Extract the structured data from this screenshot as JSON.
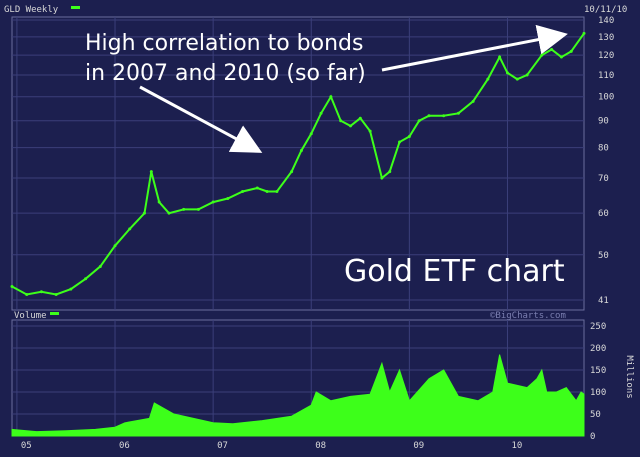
{
  "chart_data": [
    {
      "type": "line",
      "title": "GLD Weekly",
      "date": "10/11/10",
      "legend_color": "#3dff1a",
      "y_scale": "log",
      "y_ticks": [
        41,
        50,
        60,
        70,
        80,
        90,
        100,
        110,
        120,
        130,
        140
      ],
      "ylim": [
        41,
        140
      ],
      "x_ticks": [
        "05",
        "06",
        "07",
        "08",
        "09",
        "10"
      ],
      "grid": true,
      "line_color": "#3dff1a",
      "x_range": [
        2004.95,
        2010.78
      ],
      "series": [
        {
          "x": [
            2004.95,
            2005.1,
            2005.25,
            2005.4,
            2005.55,
            2005.7,
            2005.85,
            2006.0,
            2006.15,
            2006.3,
            2006.37,
            2006.45,
            2006.55,
            2006.7,
            2006.85,
            2007.0,
            2007.15,
            2007.3,
            2007.45,
            2007.55,
            2007.65,
            2007.8,
            2007.9,
            2008.0,
            2008.1,
            2008.2,
            2008.3,
            2008.4,
            2008.5,
            2008.6,
            2008.72,
            2008.8,
            2008.9,
            2009.0,
            2009.1,
            2009.2,
            2009.35,
            2009.5,
            2009.65,
            2009.8,
            2009.92,
            2010.0,
            2010.1,
            2010.2,
            2010.35,
            2010.45,
            2010.55,
            2010.65,
            2010.78
          ],
          "values": [
            43.5,
            42,
            42.5,
            42,
            43,
            45,
            47.5,
            52,
            56,
            60,
            72,
            63,
            60,
            61,
            61,
            63,
            64,
            66,
            67,
            66,
            66,
            72,
            79,
            85,
            93,
            100,
            90,
            88,
            91,
            86,
            70,
            72,
            82,
            84,
            90,
            92,
            92,
            93,
            98,
            108,
            119,
            111,
            108,
            110,
            120,
            123,
            119,
            122,
            132
          ]
        }
      ]
    },
    {
      "type": "area",
      "title": "Volume",
      "legend_color": "#3dff1a",
      "y_ticks": [
        0,
        50,
        100,
        150,
        200,
        250
      ],
      "ylabel": "Millions",
      "ylim": [
        0,
        250
      ],
      "copyright": "©BigCharts.com",
      "series": [
        {
          "x": [
            2004.95,
            2005.2,
            2005.5,
            2005.8,
            2006.0,
            2006.1,
            2006.35,
            2006.4,
            2006.6,
            2007.0,
            2007.2,
            2007.5,
            2007.8,
            2008.0,
            2008.05,
            2008.2,
            2008.4,
            2008.6,
            2008.72,
            2008.8,
            2008.9,
            2009.0,
            2009.2,
            2009.35,
            2009.5,
            2009.7,
            2009.85,
            2009.92,
            2010.0,
            2010.2,
            2010.3,
            2010.35,
            2010.4,
            2010.5,
            2010.6,
            2010.7,
            2010.75,
            2010.78
          ],
          "values": [
            15,
            10,
            12,
            15,
            20,
            30,
            40,
            75,
            50,
            30,
            28,
            35,
            45,
            70,
            100,
            80,
            90,
            95,
            165,
            100,
            150,
            80,
            130,
            150,
            90,
            80,
            100,
            185,
            120,
            110,
            130,
            150,
            100,
            100,
            110,
            80,
            100,
            95
          ]
        }
      ]
    }
  ],
  "annotations": {
    "main_line1": "High correlation to bonds",
    "main_line2": "in 2007 and 2010 (so far)",
    "big_label": "Gold ETF chart"
  }
}
